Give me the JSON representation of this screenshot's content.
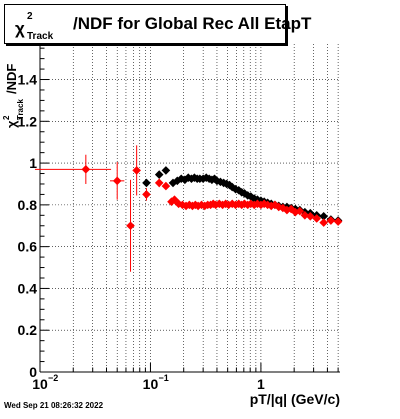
{
  "title": {
    "chi": "χ",
    "superscript": "2",
    "subscript": "Track",
    "text": "/NDF for Global Rec All EtapT"
  },
  "footer": "Wed Sep 21 08:26:32 2022",
  "chart_data": {
    "type": "scatter",
    "xscale": "log",
    "xlim": [
      0.01,
      5.2
    ],
    "ylim": [
      0,
      1.57
    ],
    "grid": true,
    "xlabel": "pT/|q| (GeV/c)",
    "ylabel": "χ²_Track/NDF",
    "xticks": [
      {
        "value": 0.01,
        "label": "10",
        "exp": "−2"
      },
      {
        "value": 0.1,
        "label": "10",
        "exp": "−1"
      },
      {
        "value": 1,
        "label": "1",
        "exp": ""
      }
    ],
    "yticks": [
      {
        "value": 0,
        "label": "0"
      },
      {
        "value": 0.2,
        "label": "0.2"
      },
      {
        "value": 0.4,
        "label": "0.4"
      },
      {
        "value": 0.6,
        "label": "0.6"
      },
      {
        "value": 0.8,
        "label": "0.8"
      },
      {
        "value": 1.0,
        "label": "1"
      },
      {
        "value": 1.2,
        "label": "1.2"
      },
      {
        "value": 1.4,
        "label": "1.4"
      }
    ],
    "series": [
      {
        "color": "#000000",
        "points": [
          {
            "x": 0.092,
            "y": 0.905
          },
          {
            "x": 0.12,
            "y": 0.945
          },
          {
            "x": 0.138,
            "y": 0.965
          },
          {
            "x": 0.16,
            "y": 0.905
          },
          {
            "x": 0.175,
            "y": 0.915
          },
          {
            "x": 0.19,
            "y": 0.925
          },
          {
            "x": 0.205,
            "y": 0.92
          },
          {
            "x": 0.22,
            "y": 0.93
          },
          {
            "x": 0.235,
            "y": 0.925
          },
          {
            "x": 0.25,
            "y": 0.93
          },
          {
            "x": 0.265,
            "y": 0.925
          },
          {
            "x": 0.28,
            "y": 0.925
          },
          {
            "x": 0.3,
            "y": 0.925
          },
          {
            "x": 0.32,
            "y": 0.93
          },
          {
            "x": 0.34,
            "y": 0.925
          },
          {
            "x": 0.36,
            "y": 0.92
          },
          {
            "x": 0.38,
            "y": 0.925
          },
          {
            "x": 0.4,
            "y": 0.915
          },
          {
            "x": 0.43,
            "y": 0.91
          },
          {
            "x": 0.46,
            "y": 0.905
          },
          {
            "x": 0.49,
            "y": 0.9
          },
          {
            "x": 0.52,
            "y": 0.895
          },
          {
            "x": 0.55,
            "y": 0.885
          },
          {
            "x": 0.59,
            "y": 0.875
          },
          {
            "x": 0.63,
            "y": 0.87
          },
          {
            "x": 0.67,
            "y": 0.86
          },
          {
            "x": 0.71,
            "y": 0.855
          },
          {
            "x": 0.76,
            "y": 0.845
          },
          {
            "x": 0.81,
            "y": 0.84
          },
          {
            "x": 0.87,
            "y": 0.83
          },
          {
            "x": 0.93,
            "y": 0.825
          },
          {
            "x": 1.0,
            "y": 0.82
          },
          {
            "x": 1.07,
            "y": 0.815
          },
          {
            "x": 1.15,
            "y": 0.81
          },
          {
            "x": 1.24,
            "y": 0.805
          },
          {
            "x": 1.34,
            "y": 0.8
          },
          {
            "x": 1.45,
            "y": 0.795
          },
          {
            "x": 1.58,
            "y": 0.79
          },
          {
            "x": 1.72,
            "y": 0.79
          },
          {
            "x": 1.88,
            "y": 0.785
          },
          {
            "x": 2.05,
            "y": 0.78
          },
          {
            "x": 2.25,
            "y": 0.775
          },
          {
            "x": 2.5,
            "y": 0.765
          },
          {
            "x": 2.8,
            "y": 0.76
          },
          {
            "x": 3.2,
            "y": 0.75
          },
          {
            "x": 3.7,
            "y": 0.745
          },
          {
            "x": 4.3,
            "y": 0.73
          },
          {
            "x": 5.0,
            "y": 0.725
          }
        ]
      },
      {
        "color": "#ff0000",
        "points": [
          {
            "x": 0.026,
            "y": 0.97,
            "xerr": [
              0.009,
              0.044
            ],
            "yerr": 0.07
          },
          {
            "x": 0.05,
            "y": 0.915,
            "xerr": [
              0.043,
              0.058
            ],
            "yerr": 0.09
          },
          {
            "x": 0.066,
            "y": 0.7,
            "xerr": [
              0.062,
              0.07
            ],
            "yerr": 0.22
          },
          {
            "x": 0.075,
            "y": 0.965,
            "xerr": [
              0.071,
              0.079
            ],
            "yerr": 0.12
          },
          {
            "x": 0.092,
            "y": 0.85,
            "yerr": 0.03
          },
          {
            "x": 0.12,
            "y": 0.905,
            "yerr": 0.02
          },
          {
            "x": 0.138,
            "y": 0.89
          },
          {
            "x": 0.155,
            "y": 0.815
          },
          {
            "x": 0.165,
            "y": 0.825
          },
          {
            "x": 0.18,
            "y": 0.805
          },
          {
            "x": 0.195,
            "y": 0.8
          },
          {
            "x": 0.21,
            "y": 0.795
          },
          {
            "x": 0.225,
            "y": 0.8
          },
          {
            "x": 0.24,
            "y": 0.795
          },
          {
            "x": 0.255,
            "y": 0.8
          },
          {
            "x": 0.27,
            "y": 0.795
          },
          {
            "x": 0.29,
            "y": 0.8
          },
          {
            "x": 0.31,
            "y": 0.795
          },
          {
            "x": 0.33,
            "y": 0.8
          },
          {
            "x": 0.35,
            "y": 0.8
          },
          {
            "x": 0.37,
            "y": 0.805
          },
          {
            "x": 0.39,
            "y": 0.8
          },
          {
            "x": 0.42,
            "y": 0.805
          },
          {
            "x": 0.45,
            "y": 0.8
          },
          {
            "x": 0.48,
            "y": 0.805
          },
          {
            "x": 0.51,
            "y": 0.8
          },
          {
            "x": 0.55,
            "y": 0.805
          },
          {
            "x": 0.59,
            "y": 0.8
          },
          {
            "x": 0.63,
            "y": 0.805
          },
          {
            "x": 0.67,
            "y": 0.8
          },
          {
            "x": 0.71,
            "y": 0.805
          },
          {
            "x": 0.76,
            "y": 0.8
          },
          {
            "x": 0.81,
            "y": 0.805
          },
          {
            "x": 0.87,
            "y": 0.8
          },
          {
            "x": 0.93,
            "y": 0.805
          },
          {
            "x": 1.0,
            "y": 0.8
          },
          {
            "x": 1.07,
            "y": 0.805
          },
          {
            "x": 1.15,
            "y": 0.8
          },
          {
            "x": 1.24,
            "y": 0.795
          },
          {
            "x": 1.34,
            "y": 0.8
          },
          {
            "x": 1.45,
            "y": 0.79
          },
          {
            "x": 1.58,
            "y": 0.785
          },
          {
            "x": 1.72,
            "y": 0.775
          },
          {
            "x": 1.88,
            "y": 0.78
          },
          {
            "x": 2.05,
            "y": 0.765
          },
          {
            "x": 2.25,
            "y": 0.77
          },
          {
            "x": 2.5,
            "y": 0.75
          },
          {
            "x": 2.8,
            "y": 0.745
          },
          {
            "x": 3.2,
            "y": 0.735
          },
          {
            "x": 3.7,
            "y": 0.715
          },
          {
            "x": 4.3,
            "y": 0.725
          },
          {
            "x": 5.0,
            "y": 0.72
          }
        ]
      }
    ]
  }
}
